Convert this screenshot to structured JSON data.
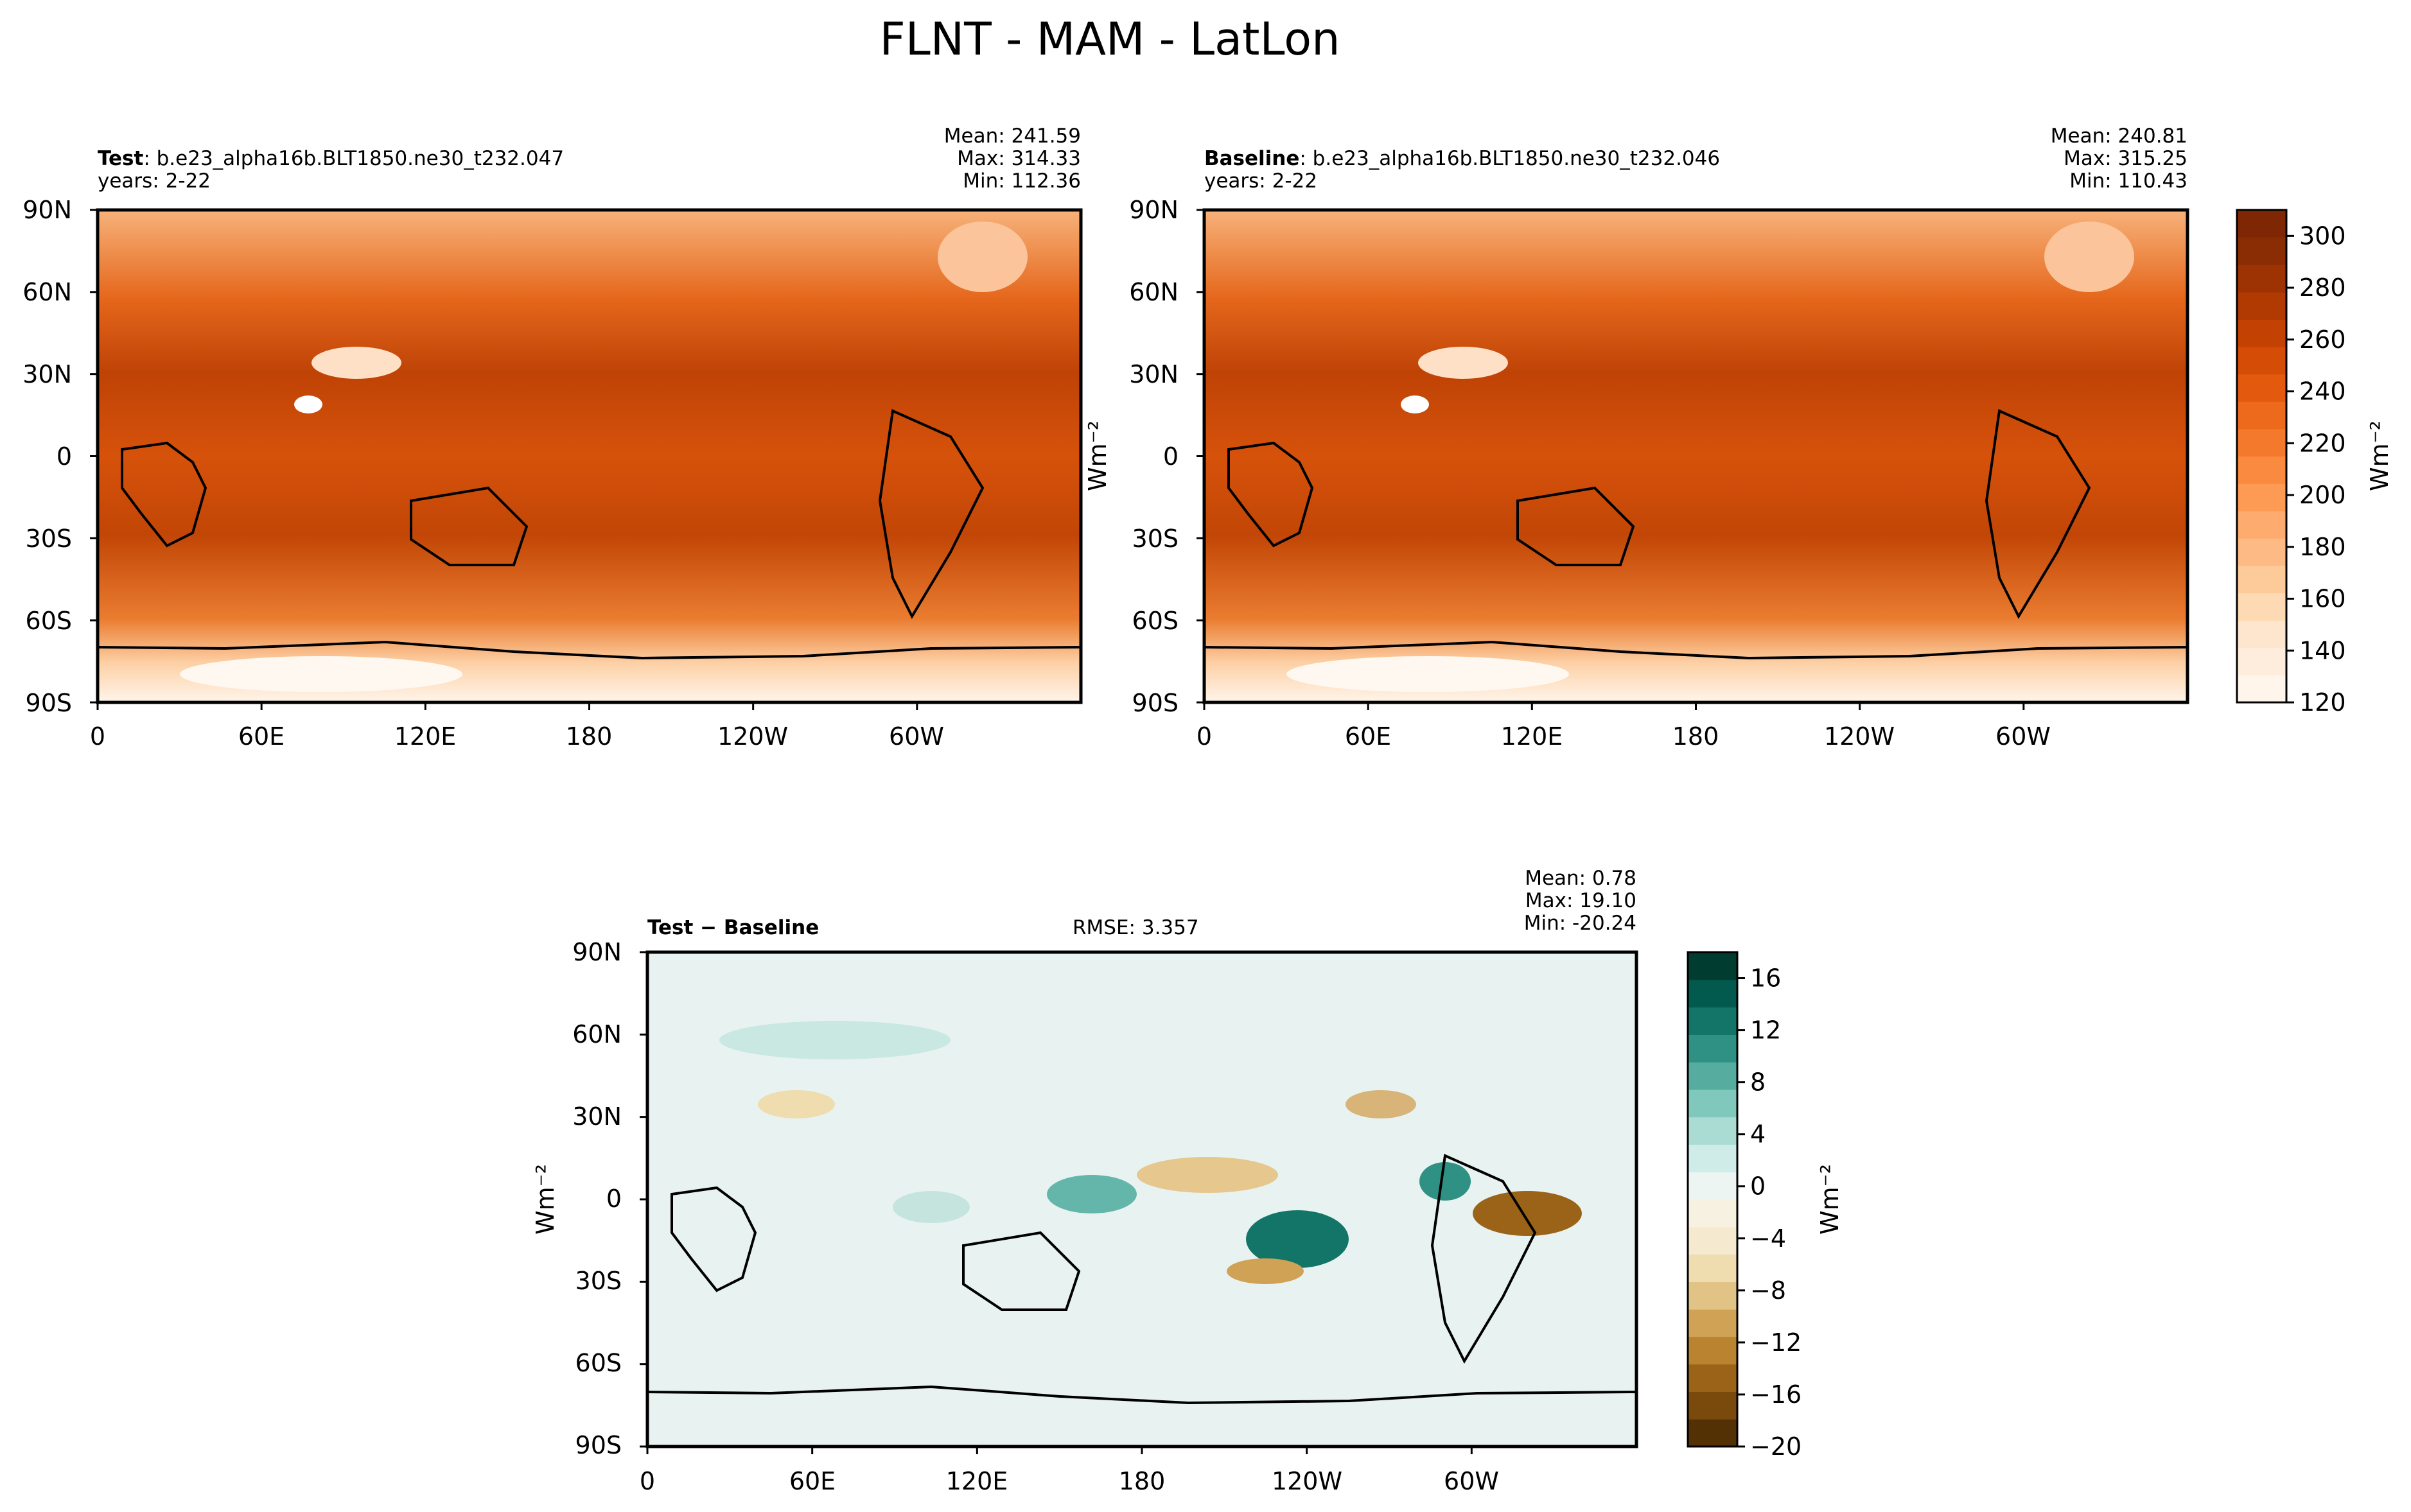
{
  "figure": {
    "title": "FLNT - MAM - LatLon"
  },
  "panels": [
    {
      "id": "test",
      "label_bold": "Test",
      "label_rest": ": b.e23_alpha16b.BLT1850.ne30_t232.047",
      "years": "years: 2-22",
      "mean": "Mean: 241.59",
      "max": "Max: 314.33",
      "min": "Min: 112.36",
      "ylabel": "Wm⁻²"
    },
    {
      "id": "baseline",
      "label_bold": "Baseline",
      "label_rest": ": b.e23_alpha16b.BLT1850.ne30_t232.046",
      "years": "years: 2-22",
      "mean": "Mean: 240.81",
      "max": "Max: 315.25",
      "min": "Min: 110.43",
      "ylabel": "Wm⁻²"
    },
    {
      "id": "diff",
      "label_bold": "Test − Baseline",
      "rmse": "RMSE: 3.357",
      "mean": "Mean:  0.78",
      "max": "Max: 19.10",
      "min": "Min: -20.24",
      "ylabel": "Wm⁻²"
    }
  ],
  "chart_data": [
    {
      "type": "heatmap",
      "title": "Test",
      "xlabel": "",
      "ylabel": "",
      "x_ticks": [
        "0",
        "60E",
        "120E",
        "180",
        "120W",
        "60W"
      ],
      "y_ticks": [
        "90N",
        "60N",
        "30N",
        "0",
        "30S",
        "60S",
        "90S"
      ],
      "xlim": [
        0,
        360
      ],
      "ylim": [
        -90,
        90
      ],
      "color_range": [
        120,
        310
      ],
      "colormap": "Oranges",
      "stats": {
        "mean": 241.59,
        "max": 314.33,
        "min": 112.36
      },
      "coastlines": true
    },
    {
      "type": "heatmap",
      "title": "Baseline",
      "xlabel": "",
      "ylabel": "",
      "x_ticks": [
        "0",
        "60E",
        "120E",
        "180",
        "120W",
        "60W"
      ],
      "y_ticks": [
        "90N",
        "60N",
        "30N",
        "0",
        "30S",
        "60S",
        "90S"
      ],
      "xlim": [
        0,
        360
      ],
      "ylim": [
        -90,
        90
      ],
      "color_range": [
        120,
        310
      ],
      "colormap": "Oranges",
      "stats": {
        "mean": 240.81,
        "max": 315.25,
        "min": 110.43
      },
      "coastlines": true
    },
    {
      "type": "heatmap",
      "title": "Test − Baseline",
      "xlabel": "",
      "ylabel": "",
      "x_ticks": [
        "0",
        "60E",
        "120E",
        "180",
        "120W",
        "60W"
      ],
      "y_ticks": [
        "90N",
        "60N",
        "30N",
        "0",
        "30S",
        "60S",
        "90S"
      ],
      "xlim": [
        0,
        360
      ],
      "ylim": [
        -90,
        90
      ],
      "color_range": [
        -20,
        18
      ],
      "colormap": "BrBG",
      "stats": {
        "mean": 0.78,
        "max": 19.1,
        "min": -20.24,
        "rmse": 3.357
      },
      "coastlines": true
    }
  ],
  "colorbars": {
    "absolute": {
      "ticks": [
        "300",
        "280",
        "260",
        "240",
        "220",
        "200",
        "180",
        "160",
        "140",
        "120"
      ],
      "range": [
        120,
        310
      ],
      "levels": [
        "#fff5eb",
        "#feeddc",
        "#fee6ce",
        "#fdd9b4",
        "#fdcb9a",
        "#fdba85",
        "#fdab6e",
        "#fd9a54",
        "#fa8a3f",
        "#f5792c",
        "#ed6a1c",
        "#e35a0f",
        "#d44c05",
        "#c34203",
        "#b13a03",
        "#9d3303",
        "#8b2d04",
        "#7f2704"
      ],
      "label": "Wm⁻²"
    },
    "difference": {
      "ticks": [
        "16",
        "12",
        "8",
        "4",
        "0",
        "−4",
        "−8",
        "−12",
        "−16",
        "−20"
      ],
      "range": [
        -20,
        18
      ],
      "levels": [
        "#543005",
        "#7a4a0d",
        "#9a6318",
        "#b98330",
        "#cfa256",
        "#e0c385",
        "#efdcaf",
        "#f5ead0",
        "#f7f1e2",
        "#edf5f3",
        "#d0ece8",
        "#aadcd4",
        "#80c7bc",
        "#55ac9f",
        "#2e9184",
        "#137567",
        "#015a4d",
        "#003c30"
      ],
      "label": "Wm⁻²"
    }
  },
  "colors": {
    "map_ocean_abs": "#e0600f",
    "map_ocean_diff": "#e8f3f1",
    "coast": "#000000"
  }
}
